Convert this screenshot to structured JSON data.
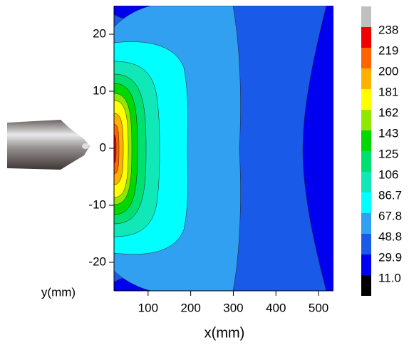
{
  "chart_data": {
    "type": "contour",
    "xlabel": "x(mm)",
    "ylabel": "y(mm)",
    "xlim": [
      20,
      535
    ],
    "ylim": [
      -25,
      25
    ],
    "xticks": [
      100,
      200,
      300,
      400,
      500
    ],
    "yticks": [
      -20,
      -10,
      0,
      10,
      20
    ],
    "levels": [
      {
        "value": 11,
        "label": "11.0"
      },
      29.9,
      48.8,
      67.8,
      86.7,
      106,
      125,
      143,
      162,
      181,
      200,
      219,
      238
    ],
    "colors": [
      "#000000",
      "#0000f0",
      "#1a5ae8",
      "#32a0f0",
      "#00ffff",
      "#10e8b8",
      "#00e070",
      "#00d800",
      "#90e800",
      "#ffff00",
      "#ffb000",
      "#ff6400",
      "#f00000",
      "#c0c0c0"
    ]
  }
}
